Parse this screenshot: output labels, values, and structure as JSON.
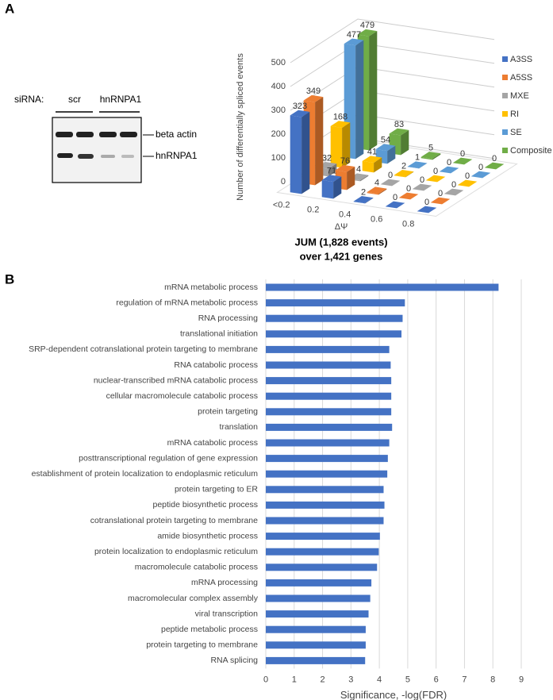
{
  "panel_labels": [
    "A",
    "B"
  ],
  "blot": {
    "row_label": "siRNA:",
    "lanes": [
      "scr",
      "hnRNPA1"
    ],
    "bands": [
      "beta actin",
      "hnRNPA1"
    ]
  },
  "chart_data": [
    {
      "type": "bar3d",
      "categories": [
        "<0.2",
        "0.2",
        "0.4",
        "0.6",
        "0.8"
      ],
      "series": [
        {
          "name": "A3SS",
          "color": "#4472c4",
          "values": [
            323,
            71,
            2,
            0,
            0
          ]
        },
        {
          "name": "A5SS",
          "color": "#ed7d31",
          "values": [
            349,
            76,
            4,
            0,
            0
          ]
        },
        {
          "name": "MXE",
          "color": "#a5a5a5",
          "values": [
            32,
            4,
            0,
            0,
            0
          ]
        },
        {
          "name": "RI",
          "color": "#ffc000",
          "values": [
            168,
            41,
            2,
            0,
            0
          ]
        },
        {
          "name": "SE",
          "color": "#5b9bd5",
          "values": [
            477,
            54,
            1,
            0,
            0
          ]
        },
        {
          "name": "Composite",
          "color": "#70ad47",
          "values": [
            479,
            83,
            5,
            0,
            0
          ]
        }
      ],
      "ylabel": "Number of differentially spliced events",
      "xlabel": "ΔΨ",
      "ylim": [
        0,
        500
      ],
      "yticks": [
        0,
        100,
        200,
        300,
        400,
        500
      ],
      "grid": true,
      "legend": "right",
      "caption": [
        "JUM (1,828 events)",
        "over 1,421 genes"
      ]
    },
    {
      "type": "bar",
      "orientation": "horizontal",
      "color": "#4472c4",
      "categories": [
        "mRNA metabolic process",
        "regulation of mRNA metabolic process",
        "RNA processing",
        "translational initiation",
        "SRP-dependent cotranslational protein targeting to membrane",
        "RNA catabolic process",
        "nuclear-transcribed mRNA catabolic process",
        "cellular macromolecule catabolic process",
        "protein targeting",
        "translation",
        "mRNA catabolic process",
        "posttranscriptional regulation of gene expression",
        "establishment of protein localization to endoplasmic reticulum",
        "protein targeting to ER",
        "peptide biosynthetic process",
        "cotranslational protein targeting to membrane",
        "amide biosynthetic process",
        "protein localization to endoplasmic reticulum",
        "macromolecule catabolic process",
        "mRNA processing",
        "macromolecular complex assembly",
        "viral transcription",
        "peptide metabolic process",
        "protein targeting to membrane",
        "RNA splicing"
      ],
      "values": [
        8.2,
        4.9,
        4.82,
        4.78,
        4.35,
        4.4,
        4.42,
        4.42,
        4.42,
        4.45,
        4.35,
        4.3,
        4.28,
        4.15,
        4.18,
        4.15,
        4.02,
        3.98,
        3.92,
        3.72,
        3.68,
        3.62,
        3.52,
        3.52,
        3.5
      ],
      "xlabel": "Significance, -log(FDR)",
      "xlim": [
        0,
        9
      ],
      "xticks": [
        0,
        1,
        2,
        3,
        4,
        5,
        6,
        7,
        8,
        9
      ],
      "grid": true
    }
  ]
}
